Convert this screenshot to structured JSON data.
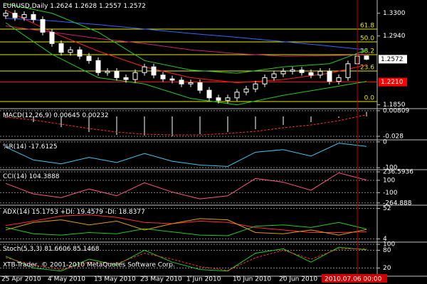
{
  "chart_data": [
    {
      "type": "candlestick",
      "title": "EURUSD,Daily",
      "open": [
        1.326,
        1.33,
        1.323,
        1.328,
        1.32,
        1.3,
        1.282,
        1.268,
        1.272,
        1.262,
        1.255,
        1.236,
        1.238,
        1.228,
        1.225,
        1.236,
        1.245,
        1.232,
        1.226,
        1.224,
        1.218,
        1.22,
        1.208,
        1.196,
        1.192,
        1.196,
        1.205,
        1.21,
        1.218,
        1.228,
        1.234,
        1.238,
        1.24,
        1.236,
        1.232,
        1.238,
        1.222,
        1.228,
        1.25,
        1.2624
      ],
      "high": [
        1.335,
        1.335,
        1.333,
        1.333,
        1.325,
        1.305,
        1.287,
        1.277,
        1.277,
        1.267,
        1.26,
        1.243,
        1.243,
        1.233,
        1.241,
        1.25,
        1.25,
        1.237,
        1.231,
        1.229,
        1.225,
        1.225,
        1.213,
        1.201,
        1.201,
        1.21,
        1.215,
        1.223,
        1.233,
        1.239,
        1.243,
        1.245,
        1.245,
        1.241,
        1.243,
        1.243,
        1.233,
        1.255,
        1.267,
        1.2628
      ],
      "low": [
        1.321,
        1.318,
        1.318,
        1.315,
        1.295,
        1.277,
        1.263,
        1.263,
        1.257,
        1.25,
        1.231,
        1.231,
        1.223,
        1.22,
        1.22,
        1.231,
        1.227,
        1.221,
        1.219,
        1.213,
        1.213,
        1.203,
        1.191,
        1.187,
        1.187,
        1.191,
        1.2,
        1.205,
        1.213,
        1.223,
        1.229,
        1.233,
        1.231,
        1.227,
        1.227,
        1.217,
        1.217,
        1.223,
        1.245,
        1.2557
      ],
      "close": [
        1.33,
        1.323,
        1.328,
        1.32,
        1.3,
        1.282,
        1.268,
        1.272,
        1.262,
        1.255,
        1.236,
        1.238,
        1.228,
        1.225,
        1.236,
        1.245,
        1.232,
        1.226,
        1.224,
        1.218,
        1.22,
        1.208,
        1.196,
        1.192,
        1.196,
        1.205,
        1.21,
        1.218,
        1.228,
        1.234,
        1.238,
        1.24,
        1.236,
        1.232,
        1.238,
        1.222,
        1.228,
        1.25,
        1.262,
        1.2572
      ],
      "up_color": "#000000",
      "down_color": "#ffffff",
      "wick_color": "#ffffff",
      "overlay_x": [
        0,
        5,
        10,
        15,
        20,
        25,
        30,
        35,
        39
      ],
      "overlays": [
        {
          "color": "#3366ff",
          "values": [
            1.322,
            1.318,
            1.312,
            1.305,
            1.298,
            1.292,
            1.285,
            1.278,
            1.272
          ]
        },
        {
          "color": "#cc2277",
          "values": [
            1.31,
            1.3,
            1.29,
            1.282,
            1.272,
            1.266,
            1.262,
            1.263,
            1.264
          ]
        },
        {
          "color": "#ff2020",
          "values": [
            1.335,
            1.3,
            1.27,
            1.245,
            1.228,
            1.22,
            1.225,
            1.235,
            1.248
          ]
        },
        {
          "color": "#22cc22",
          "values": [
            1.345,
            1.33,
            1.3,
            1.255,
            1.24,
            1.235,
            1.245,
            1.25,
            1.272
          ]
        },
        {
          "color": "#22cc22",
          "values": [
            1.315,
            1.265,
            1.228,
            1.218,
            1.195,
            1.185,
            1.2,
            1.212,
            1.222
          ]
        }
      ],
      "levels": [
        {
          "value": 1.3049,
          "label": "61.8"
        },
        {
          "value": 1.2846,
          "label": "50.0"
        },
        {
          "value": 1.2644,
          "label": "38.2"
        },
        {
          "value": 1.2385,
          "label": "23.6"
        },
        {
          "value": 1.1901,
          "label": "0.0"
        }
      ],
      "level_color": "#e8e800",
      "marked_levels": [
        {
          "value": 1.221,
          "label": "1.2210",
          "color": "#ff0000"
        }
      ],
      "ylim": [
        1.18,
        1.351
      ],
      "yticks": [
        {
          "value": 1.33,
          "label": "1.3300"
        },
        {
          "value": 1.294,
          "label": "1.2940"
        },
        {
          "value": 1.185,
          "label": "1.1850"
        }
      ]
    },
    {
      "type": "bar",
      "title": "MACD(12,26,9)",
      "x": [
        0,
        3,
        6,
        9,
        12,
        15,
        18,
        21,
        24,
        27,
        30,
        33,
        36,
        39
      ],
      "series": [
        {
          "color": "#ffffff",
          "values": [
            -0.002,
            -0.008,
            -0.015,
            -0.022,
            -0.026,
            -0.027,
            -0.028,
            -0.025,
            -0.022,
            -0.018,
            -0.012,
            -0.008,
            -0.002,
            0.00645
          ]
        },
        {
          "color": "#ff3030",
          "dashed": true,
          "values": [
            -0.001,
            -0.005,
            -0.011,
            -0.017,
            -0.022,
            -0.025,
            -0.026,
            -0.026,
            -0.024,
            -0.021,
            -0.016,
            -0.012,
            -0.006,
            0.00232
          ]
        }
      ],
      "ylim": [
        -0.032,
        0.01
      ],
      "yticks": [
        0.00809,
        -0.028
      ]
    },
    {
      "type": "line",
      "title": "%R(14)",
      "x": [
        0,
        3,
        6,
        9,
        12,
        15,
        18,
        21,
        24,
        27,
        30,
        33,
        36,
        39
      ],
      "series": [
        {
          "color": "#40c8f0",
          "values": [
            -20,
            -70,
            -85,
            -60,
            -80,
            -45,
            -75,
            -90,
            -95,
            -40,
            -30,
            -55,
            -5,
            -17.6125
          ]
        }
      ],
      "ylim": [
        -105,
        5
      ],
      "yticks": [
        0,
        -100
      ]
    },
    {
      "type": "line",
      "title": "CCI(14)",
      "x": [
        0,
        3,
        6,
        9,
        12,
        15,
        18,
        21,
        24,
        27,
        30,
        33,
        36,
        39
      ],
      "series": [
        {
          "color": "#ff5a80",
          "values": [
            50,
            -120,
            -180,
            -40,
            -150,
            60,
            -90,
            -200,
            -150,
            130,
            70,
            -60,
            220,
            104.3888
          ]
        }
      ],
      "ylim": [
        -290,
        260
      ],
      "yticks": [
        236.5936,
        100,
        -100,
        -264.888
      ]
    },
    {
      "type": "line",
      "title": "ADX(14)",
      "x": [
        0,
        3,
        6,
        9,
        12,
        15,
        18,
        21,
        24,
        27,
        30,
        33,
        36,
        39
      ],
      "series": [
        {
          "color": "#ff3030",
          "values": [
            25,
            32,
            40,
            42,
            38,
            30,
            28,
            32,
            30,
            22,
            18,
            14,
            14,
            15.1753
          ]
        },
        {
          "name": "+DI:",
          "color": "#22cc22",
          "values": [
            22,
            12,
            10,
            14,
            12,
            20,
            15,
            10,
            9,
            24,
            26,
            22,
            30,
            19.4579
          ]
        },
        {
          "name": "-DI:",
          "color": "#e0a000",
          "values": [
            18,
            30,
            34,
            26,
            32,
            18,
            28,
            36,
            34,
            14,
            12,
            18,
            10,
            18.8377
          ]
        }
      ],
      "ylim": [
        0,
        56
      ],
      "yticks": [
        52,
        4
      ]
    },
    {
      "type": "line",
      "title": "Stoch(5,3,3)",
      "footer": "XTB-Trader, © 2001-2010 MetaQuotes Software Corp.",
      "x": [
        0,
        3,
        6,
        9,
        12,
        15,
        18,
        21,
        24,
        27,
        30,
        33,
        36,
        39
      ],
      "series": [
        {
          "color": "#22cc22",
          "values": [
            60,
            20,
            10,
            50,
            30,
            80,
            40,
            15,
            10,
            70,
            85,
            40,
            90,
            81.6606
          ]
        },
        {
          "color": "#ff3030",
          "dashed": true,
          "values": [
            55,
            30,
            15,
            40,
            35,
            70,
            50,
            25,
            12,
            55,
            80,
            50,
            85,
            85.1468
          ]
        }
      ],
      "ylim": [
        -5,
        105
      ],
      "yticks": [
        100,
        80,
        20
      ]
    }
  ],
  "x_axis": {
    "labels": [
      {
        "value": 0,
        "label": "25 Apr 2010"
      },
      {
        "value": 5,
        "label": "4 May 2010"
      },
      {
        "value": 10,
        "label": "13 May 2010"
      },
      {
        "value": 15,
        "label": "23 May 2010"
      },
      {
        "value": 20,
        "label": "1 Jun 2010"
      },
      {
        "value": 25,
        "label": "10 Jun 2010"
      },
      {
        "value": 30,
        "label": "20 Jun 2010"
      },
      {
        "value": 35,
        "label": "29"
      }
    ],
    "cursor": {
      "value": 38,
      "label": "2010.07.06 00:00"
    }
  }
}
